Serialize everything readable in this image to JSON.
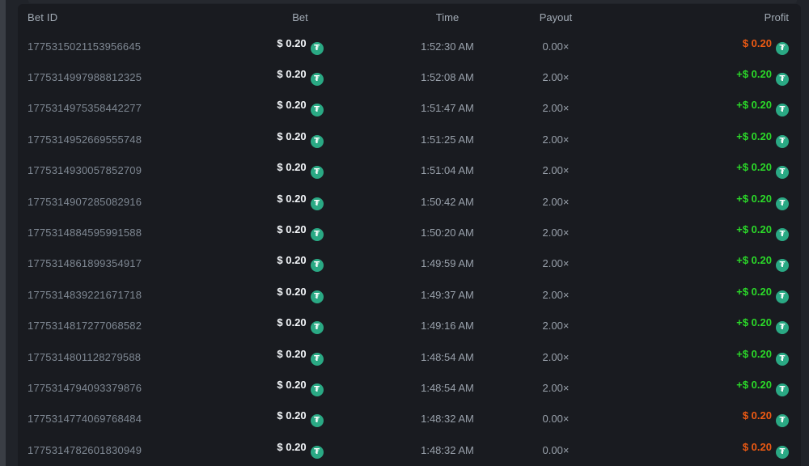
{
  "table": {
    "columns": {
      "id": "Bet ID",
      "bet": "Bet",
      "time": "Time",
      "payout": "Payout",
      "profit": "Profit"
    },
    "currency": {
      "icon": "tether-icon",
      "symbol": "₮"
    },
    "rows": [
      {
        "id": "1775315021153956645",
        "bet": "$ 0.20",
        "time": "1:52:30 AM",
        "payout": "0.00×",
        "profit": "$ 0.20",
        "outcome": "loss"
      },
      {
        "id": "1775314997988812325",
        "bet": "$ 0.20",
        "time": "1:52:08 AM",
        "payout": "2.00×",
        "profit": "+$ 0.20",
        "outcome": "win"
      },
      {
        "id": "1775314975358442277",
        "bet": "$ 0.20",
        "time": "1:51:47 AM",
        "payout": "2.00×",
        "profit": "+$ 0.20",
        "outcome": "win"
      },
      {
        "id": "1775314952669555748",
        "bet": "$ 0.20",
        "time": "1:51:25 AM",
        "payout": "2.00×",
        "profit": "+$ 0.20",
        "outcome": "win"
      },
      {
        "id": "1775314930057852709",
        "bet": "$ 0.20",
        "time": "1:51:04 AM",
        "payout": "2.00×",
        "profit": "+$ 0.20",
        "outcome": "win"
      },
      {
        "id": "1775314907285082916",
        "bet": "$ 0.20",
        "time": "1:50:42 AM",
        "payout": "2.00×",
        "profit": "+$ 0.20",
        "outcome": "win"
      },
      {
        "id": "1775314884595991588",
        "bet": "$ 0.20",
        "time": "1:50:20 AM",
        "payout": "2.00×",
        "profit": "+$ 0.20",
        "outcome": "win"
      },
      {
        "id": "1775314861899354917",
        "bet": "$ 0.20",
        "time": "1:49:59 AM",
        "payout": "2.00×",
        "profit": "+$ 0.20",
        "outcome": "win"
      },
      {
        "id": "1775314839221671718",
        "bet": "$ 0.20",
        "time": "1:49:37 AM",
        "payout": "2.00×",
        "profit": "+$ 0.20",
        "outcome": "win"
      },
      {
        "id": "1775314817277068582",
        "bet": "$ 0.20",
        "time": "1:49:16 AM",
        "payout": "2.00×",
        "profit": "+$ 0.20",
        "outcome": "win"
      },
      {
        "id": "1775314801128279588",
        "bet": "$ 0.20",
        "time": "1:48:54 AM",
        "payout": "2.00×",
        "profit": "+$ 0.20",
        "outcome": "win"
      },
      {
        "id": "1775314794093379876",
        "bet": "$ 0.20",
        "time": "1:48:54 AM",
        "payout": "2.00×",
        "profit": "+$ 0.20",
        "outcome": "win"
      },
      {
        "id": "1775314774069768484",
        "bet": "$ 0.20",
        "time": "1:48:32 AM",
        "payout": "0.00×",
        "profit": "$ 0.20",
        "outcome": "loss"
      },
      {
        "id": "1775314782601830949",
        "bet": "$ 0.20",
        "time": "1:48:32 AM",
        "payout": "0.00×",
        "profit": "$ 0.20",
        "outcome": "loss"
      }
    ]
  },
  "colors": {
    "win": "#2bd929",
    "loss": "#ed5a13",
    "tether": "#2aa984",
    "table_background": "#191b20",
    "page_background": "#202329"
  }
}
